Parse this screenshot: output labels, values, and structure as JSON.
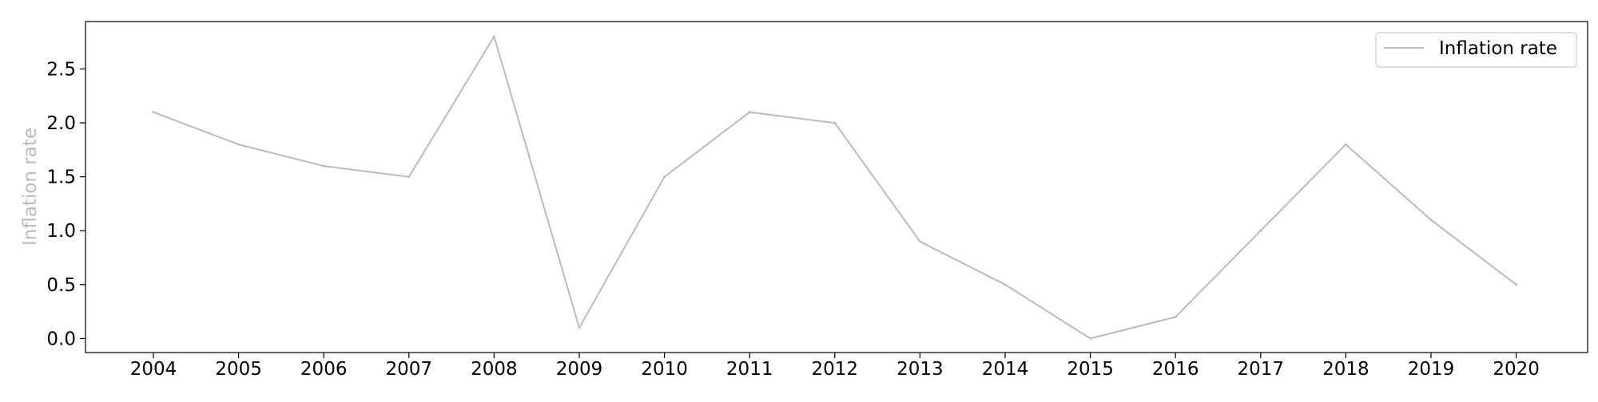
{
  "chart_data": {
    "type": "line",
    "title": "",
    "xlabel": "",
    "ylabel": "Inflation rate",
    "x": [
      "2004",
      "2005",
      "2006",
      "2007",
      "2008",
      "2009",
      "2010",
      "2011",
      "2012",
      "2013",
      "2014",
      "2015",
      "2016",
      "2017",
      "2018",
      "2019",
      "2020"
    ],
    "series": [
      {
        "name": "Inflation rate",
        "color": "#bbbbbb",
        "values": [
          2.1,
          1.8,
          1.6,
          1.5,
          2.8,
          0.1,
          1.5,
          2.1,
          2.0,
          0.9,
          0.5,
          0.0,
          0.2,
          1.0,
          1.8,
          1.1,
          0.5
        ]
      }
    ],
    "y_ticks": [
      "0.0",
      "0.5",
      "1.0",
      "1.5",
      "2.0",
      "2.5"
    ],
    "ylim": [
      -0.13,
      2.94
    ],
    "grid": false,
    "legend": "top-right",
    "colors": {
      "axis": "#000000",
      "ylabel": "#bbbbbb",
      "line": "#bbbbbb",
      "legend_border": "#cccccc"
    }
  }
}
